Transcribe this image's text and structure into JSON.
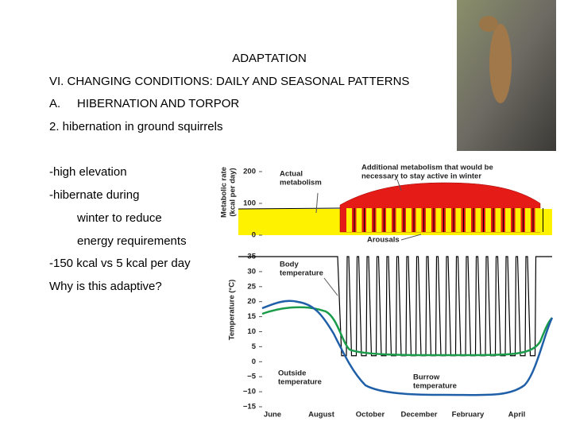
{
  "slide": {
    "title": "ADAPTATION",
    "heading": "VI. CHANGING CONDITIONS: DAILY AND SEASONAL PATTERNS",
    "section_label": "A.",
    "section_title": "HIBERNATION AND TORPOR",
    "subheading": "2. hibernation in ground squirrels",
    "bullets": [
      "-high elevation",
      "-hibernate during",
      "winter to reduce",
      "energy requirements",
      "-150 kcal vs 5 kcal per day",
      "Why is this adaptive?"
    ]
  },
  "figure": {
    "metabolic_axis_title": [
      "Metabolic rate",
      "(kcal per day)"
    ],
    "metabolic_ticks": [
      0,
      100,
      200
    ],
    "temperature_axis_title": "Temperature (°C)",
    "temperature_ticks": [
      35,
      30,
      25,
      20,
      15,
      10,
      5,
      0,
      {
        "value": -5,
        "label": "−5"
      },
      {
        "value": -10,
        "label": "−10"
      },
      {
        "value": -15,
        "label": "−15"
      }
    ],
    "months": [
      "June",
      "August",
      "October",
      "December",
      "February",
      "April"
    ],
    "annotations": {
      "actual": [
        "Actual",
        "metabolism"
      ],
      "additional": [
        "Additional metabolism that would be",
        "necessary to stay active in winter"
      ],
      "arousals": "Arousals",
      "body": [
        "Body",
        "temperature"
      ],
      "outside": [
        "Outside",
        "temperature"
      ],
      "burrow": [
        "Burrow",
        "temperature"
      ]
    }
  }
}
